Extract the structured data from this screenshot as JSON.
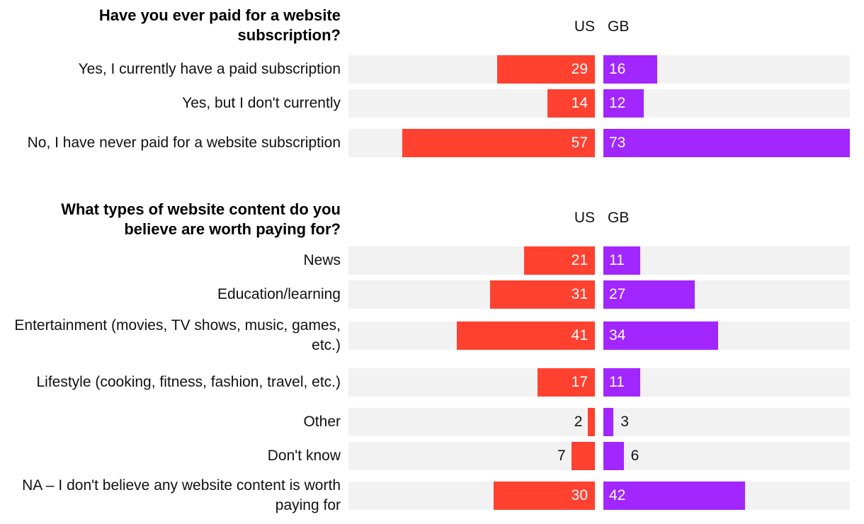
{
  "chart_data": [
    {
      "type": "bar",
      "title": "Have you ever paid for a website subscription?",
      "unit": "percent",
      "series": [
        {
          "name": "US",
          "color": "#ff4130",
          "values": [
            29,
            14,
            57
          ]
        },
        {
          "name": "GB",
          "color": "#a126ff",
          "values": [
            16,
            12,
            73
          ]
        }
      ],
      "categories": [
        "Yes, I currently have a paid subscription",
        "Yes, but I don't currently",
        "No, I have never paid for a website subscription"
      ],
      "xlim": [
        0,
        73
      ]
    },
    {
      "type": "bar",
      "title": "What types of website content do you believe are worth paying for?",
      "unit": "percent",
      "series": [
        {
          "name": "US",
          "color": "#ff4130",
          "values": [
            21,
            31,
            41,
            17,
            2,
            7,
            30
          ]
        },
        {
          "name": "GB",
          "color": "#a126ff",
          "values": [
            11,
            27,
            34,
            11,
            3,
            6,
            42
          ]
        }
      ],
      "categories": [
        "News",
        "Education/learning",
        "Entertainment (movies, TV shows, music, games, etc.)",
        "Lifestyle (cooking, fitness, fashion, travel, etc.)",
        "Other",
        "Don't know",
        "NA – I don't believe any website content is worth paying for"
      ],
      "xlim": [
        0,
        73
      ]
    }
  ]
}
